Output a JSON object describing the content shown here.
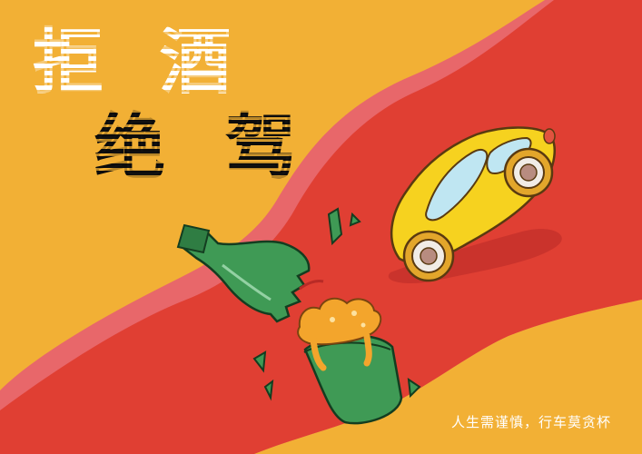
{
  "headline": {
    "line1": [
      "拒",
      "酒"
    ],
    "line2": [
      "绝",
      "驾"
    ]
  },
  "slogan": "人生需谨慎，行车莫贪杯",
  "colors": {
    "background": "#f2b035",
    "road": "#e03f33",
    "road_edge": "#e8676a",
    "car": "#f6d21f",
    "bottle": "#3f9a55",
    "beer": "#f3a52c"
  },
  "illustrations": {
    "car": "yellow-car-illustration",
    "bottle": "broken-green-bottle-illustration",
    "glass": "green-beer-glass-illustration"
  }
}
